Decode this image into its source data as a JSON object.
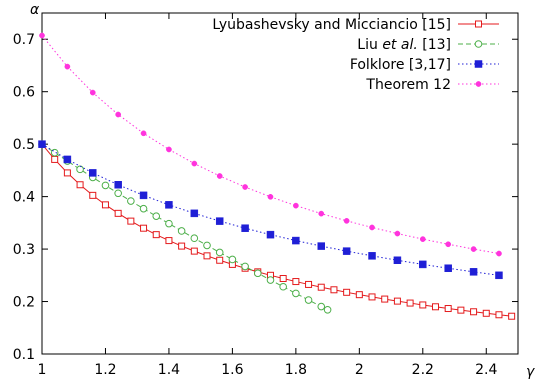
{
  "chart_data": {
    "type": "line",
    "xlabel": "γ",
    "ylabel": "α",
    "xlim": [
      1,
      2.5
    ],
    "ylim": [
      0.1,
      0.75
    ],
    "x_ticks": [
      "1",
      "1.2",
      "1.4",
      "1.6",
      "1.8",
      "2",
      "2.2",
      "2.4"
    ],
    "y_ticks": [
      "0.1",
      "0.2",
      "0.3",
      "0.4",
      "0.5",
      "0.6",
      "0.7"
    ],
    "x_tick_values": [
      1,
      1.2,
      1.4,
      1.6,
      1.8,
      2,
      2.2,
      2.4
    ],
    "y_tick_values": [
      0.1,
      0.2,
      0.3,
      0.4,
      0.5,
      0.6,
      0.7
    ],
    "grid": false,
    "legend_position": "top-right",
    "series": [
      {
        "name": "Lyubashevsky and Micciancio [15]",
        "name_parts": [
          {
            "text": "Lyubashevsky and Micciancio [15]",
            "italic": false
          }
        ],
        "color": "#e41a1c",
        "dash": "solid",
        "marker": "open-square",
        "x": [
          1,
          1.04,
          1.08,
          1.12,
          1.16,
          1.2,
          1.24,
          1.28,
          1.32,
          1.36,
          1.4,
          1.44,
          1.48,
          1.52,
          1.56,
          1.6,
          1.64,
          1.68,
          1.72,
          1.76,
          1.8,
          1.84,
          1.88,
          1.92,
          1.96,
          2,
          2.04,
          2.08,
          2.12,
          2.16,
          2.2,
          2.24,
          2.28,
          2.32,
          2.36,
          2.4,
          2.44,
          2.48
        ],
        "y": [
          0.5,
          0.4709,
          0.4452,
          0.4226,
          0.4024,
          0.3843,
          0.3681,
          0.3533,
          0.3398,
          0.3275,
          0.3162,
          0.3057,
          0.2961,
          0.2871,
          0.2787,
          0.2708,
          0.2635,
          0.2566,
          0.25,
          0.2439,
          0.2381,
          0.2326,
          0.2273,
          0.2224,
          0.2176,
          0.2131,
          0.2088,
          0.2047,
          0.2008,
          0.1971,
          0.1935,
          0.19,
          0.1867,
          0.1836,
          0.1805,
          0.1776,
          0.1748,
          0.172
        ]
      },
      {
        "name": "Liu et al. [13]",
        "name_parts": [
          {
            "text": "Liu ",
            "italic": false
          },
          {
            "text": "et al.",
            "italic": true
          },
          {
            "text": " [13]",
            "italic": false
          }
        ],
        "color": "#4daf4a",
        "dash": "dashed",
        "marker": "open-circle",
        "x": [
          1,
          1.04,
          1.08,
          1.12,
          1.16,
          1.2,
          1.24,
          1.28,
          1.32,
          1.36,
          1.4,
          1.44,
          1.48,
          1.52,
          1.56,
          1.6,
          1.64,
          1.68,
          1.72,
          1.76,
          1.8,
          1.84,
          1.88,
          1.9
        ],
        "y": [
          0.5,
          0.4838,
          0.4678,
          0.452,
          0.4366,
          0.4214,
          0.4064,
          0.3916,
          0.377,
          0.3627,
          0.3485,
          0.3345,
          0.3207,
          0.307,
          0.2935,
          0.2802,
          0.267,
          0.2539,
          0.241,
          0.2282,
          0.2155,
          0.2029,
          0.1904,
          0.1843
        ]
      },
      {
        "name": "Folklore [3,17]",
        "name_parts": [
          {
            "text": "Folklore [3,17]",
            "italic": false
          }
        ],
        "color": "#1f1fd6",
        "dash": "dotted",
        "marker": "filled-square",
        "x": [
          1,
          1.08,
          1.16,
          1.24,
          1.32,
          1.4,
          1.48,
          1.56,
          1.64,
          1.72,
          1.8,
          1.88,
          1.96,
          2.04,
          2.12,
          2.2,
          2.28,
          2.36,
          2.44
        ],
        "y": [
          0.5,
          0.4709,
          0.4452,
          0.4226,
          0.4024,
          0.3843,
          0.3681,
          0.3533,
          0.3398,
          0.3275,
          0.3162,
          0.3057,
          0.2961,
          0.2871,
          0.2787,
          0.2708,
          0.2635,
          0.2566,
          0.25
        ]
      },
      {
        "name": "Theorem 12",
        "name_parts": [
          {
            "text": "Theorem 12",
            "italic": false
          }
        ],
        "color": "#ff33dd",
        "dash": "dotted",
        "marker": "filled-circle",
        "x": [
          1,
          1.08,
          1.16,
          1.24,
          1.32,
          1.4,
          1.48,
          1.56,
          1.64,
          1.72,
          1.8,
          1.88,
          1.96,
          2.04,
          2.12,
          2.2,
          2.28,
          2.36,
          2.44
        ],
        "y": [
          0.7071,
          0.6478,
          0.5983,
          0.5565,
          0.5207,
          0.4899,
          0.463,
          0.4393,
          0.4183,
          0.3996,
          0.3828,
          0.3676,
          0.3538,
          0.3412,
          0.3296,
          0.319,
          0.3092,
          0.3,
          0.2915
        ]
      }
    ]
  }
}
